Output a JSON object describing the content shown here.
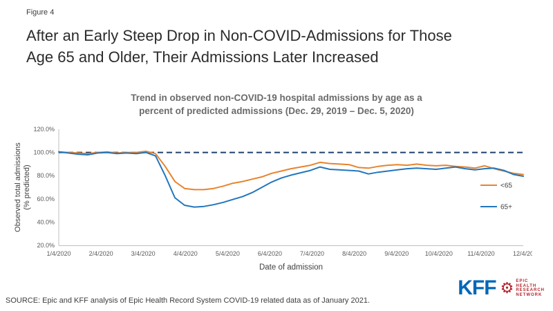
{
  "figure_label": "Figure 4",
  "title": "After an Early Steep Drop in Non-COVID-Admissions for Those\nAge 65 and Older, Their Admissions Later Increased",
  "source": "SOURCE: Epic and KFF analysis of Epic Health Record System COVID-19 related data as of January 2021.",
  "logos": {
    "kff": "KFF",
    "epic_lines": [
      "EPIC",
      "HEALTH",
      "RESEARCH",
      "NETWORK"
    ]
  },
  "chart_data": {
    "type": "line",
    "title": "Trend in observed non-COVID-19 hospital admissions by age as a\npercent of predicted admissions (Dec. 29, 2019 – Dec. 5, 2020)",
    "xlabel": "Date of admission",
    "ylabel": "Observed total admissions\n(% predicted)",
    "ylim": [
      20,
      120
    ],
    "y_ticks": [
      20,
      40,
      60,
      80,
      100,
      120
    ],
    "y_tick_format": "percent_one_decimal",
    "x_tick_labels": [
      "1/4/2020",
      "2/4/2020",
      "3/4/2020",
      "4/4/2020",
      "5/4/2020",
      "6/4/2020",
      "7/4/2020",
      "8/4/2020",
      "9/4/2020",
      "10/4/2020",
      "11/4/2020",
      "12/4/20"
    ],
    "x": [
      "1/4",
      "1/11",
      "1/18",
      "1/25",
      "2/1",
      "2/8",
      "2/15",
      "2/22",
      "2/29",
      "3/7",
      "3/14",
      "3/21",
      "3/28",
      "4/4",
      "4/11",
      "4/18",
      "4/25",
      "5/2",
      "5/9",
      "5/16",
      "5/23",
      "5/30",
      "6/6",
      "6/13",
      "6/20",
      "6/27",
      "7/4",
      "7/11",
      "7/18",
      "7/25",
      "8/1",
      "8/8",
      "8/15",
      "8/22",
      "8/29",
      "9/5",
      "9/12",
      "9/19",
      "9/26",
      "10/3",
      "10/10",
      "10/17",
      "10/24",
      "10/31",
      "11/7",
      "11/14",
      "11/21",
      "11/28",
      "12/5"
    ],
    "reference_line": 100,
    "grid": false,
    "legend_position": "right",
    "colors": {
      "reference": "#1C3F6E",
      "axis": "#BFBFBF",
      "tick_text": "#595959"
    },
    "series": [
      {
        "name": "<65",
        "color": "#E8832C",
        "values": [
          100.5,
          100,
          99.5,
          99,
          100,
          100.5,
          99.5,
          100,
          100,
          101,
          99,
          88,
          75,
          69,
          68,
          68,
          69,
          71,
          73.5,
          75,
          77,
          79,
          82,
          84,
          86,
          87.5,
          89,
          91.5,
          90.5,
          90,
          89.5,
          87,
          86.5,
          88,
          89,
          89.5,
          89,
          90,
          89,
          88.5,
          89,
          88,
          87.5,
          86.5,
          88.5,
          86,
          84,
          82,
          81
        ]
      },
      {
        "name": "65+",
        "color": "#2176BD",
        "values": [
          100.5,
          99.5,
          98.5,
          98,
          99.5,
          100,
          99,
          99.5,
          99,
          100,
          97,
          80,
          61,
          54.5,
          53,
          53.5,
          55,
          57,
          59.5,
          62,
          65.5,
          70,
          74.5,
          78,
          80.5,
          82.5,
          84.5,
          87.5,
          85.5,
          85,
          84.5,
          84,
          81.5,
          83,
          84,
          85,
          86,
          86.5,
          86,
          85.5,
          86.5,
          87.5,
          86,
          85,
          86,
          86.5,
          84.5,
          81,
          79.5
        ]
      }
    ]
  }
}
